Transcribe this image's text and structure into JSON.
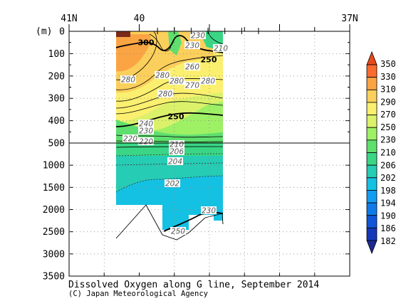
{
  "chart_data": {
    "type": "heatmap",
    "title": "Dissolved Oxygen along G line, September 2014",
    "credit": "(C) Japan Meteorological Agency",
    "ylabel": "(m)",
    "x_ticks": [
      {
        "lat": 41,
        "label": "41N"
      },
      {
        "lat": 40,
        "label": "40"
      },
      {
        "lat": 37,
        "label": "37N"
      }
    ],
    "x_range": [
      41,
      37
    ],
    "y_upper": {
      "range": [
        0,
        500
      ],
      "ticks": [
        "0",
        "100",
        "200",
        "300",
        "400",
        "500"
      ]
    },
    "y_lower": {
      "range": [
        500,
        3500
      ],
      "ticks": [
        "1000",
        "1500",
        "2000",
        "2500",
        "3000",
        "3500"
      ]
    },
    "colorbar": {
      "levels": [
        "350",
        "330",
        "310",
        "290",
        "270",
        "250",
        "230",
        "210",
        "206",
        "202",
        "198",
        "194",
        "190",
        "186",
        "182"
      ],
      "colors": [
        "#fd6a2e",
        "#fba444",
        "#fbcf5b",
        "#fbef6f",
        "#dbf16a",
        "#9ef065",
        "#5fdf6e",
        "#3ad685",
        "#26ccb4",
        "#14c1e2",
        "#129df3",
        "#0f7be8",
        "#1056d8",
        "#1438b8"
      ]
    },
    "contour_labels": [
      "300",
      "230",
      "230",
      "210",
      "250",
      "260",
      "280",
      "280",
      "280",
      "270",
      "280",
      "280",
      "250",
      "240",
      "230",
      "220",
      "220",
      "210",
      "206",
      "204",
      "202",
      "230",
      "250"
    ],
    "stations_lat": [
      39.74,
      39.5,
      39.26,
      39.02,
      38.78,
      38.54,
      38.3
    ]
  }
}
